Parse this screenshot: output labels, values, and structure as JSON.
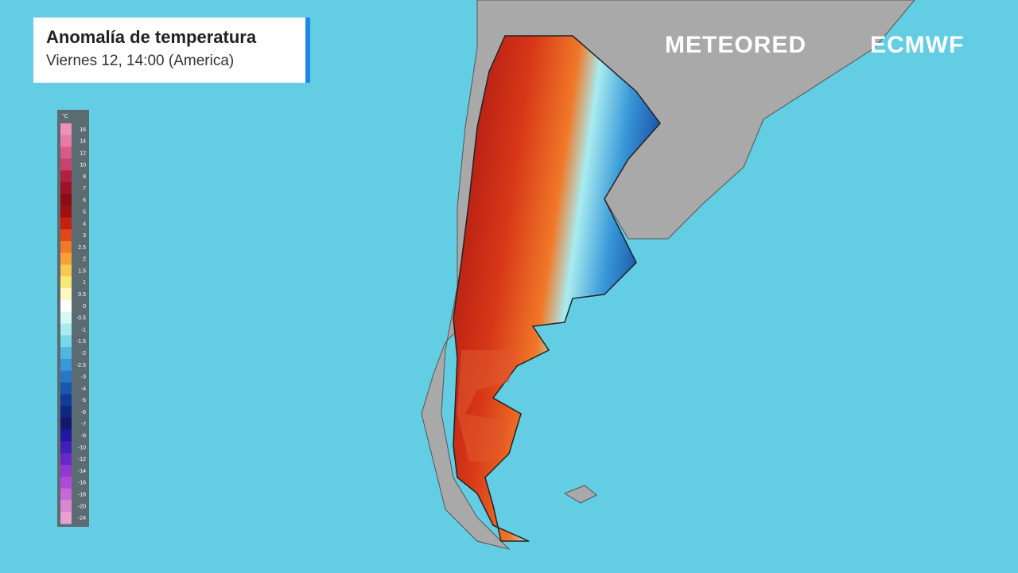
{
  "header": {
    "title": "Anomalía de temperatura",
    "subtitle": "Viernes 12, 14:00 (America)"
  },
  "logos": {
    "meteored": "METEORED",
    "ecmwf": "ECMWF"
  },
  "legend": {
    "unit": "°C",
    "labels": [
      16,
      14,
      12,
      10,
      8,
      7,
      6,
      5,
      4,
      3,
      2.5,
      2,
      1.5,
      1,
      0.5,
      0,
      -0.5,
      -1,
      -1.5,
      -2,
      -2.5,
      -3,
      -4,
      -5,
      -6,
      -7,
      -8,
      -10,
      -12,
      -14,
      -16,
      -18,
      -20,
      -24
    ],
    "colors": [
      "#f08fb8",
      "#e87aa6",
      "#d85a88",
      "#c8426e",
      "#b02040",
      "#9a1428",
      "#8a0c14",
      "#a01010",
      "#c82010",
      "#e04818",
      "#f07828",
      "#f8a038",
      "#f8c850",
      "#f8e878",
      "#fff8c0",
      "#ffffff",
      "#d8f8f8",
      "#a8ecf0",
      "#78d8e8",
      "#50b8e0",
      "#3898d8",
      "#2878c8",
      "#1858b0",
      "#103c98",
      "#0c2880",
      "#101870",
      "#2018a0",
      "#4020b8",
      "#6828c8",
      "#9038d0",
      "#b048d8",
      "#c868d8",
      "#d888d0",
      "#e8a0d0"
    ]
  }
}
